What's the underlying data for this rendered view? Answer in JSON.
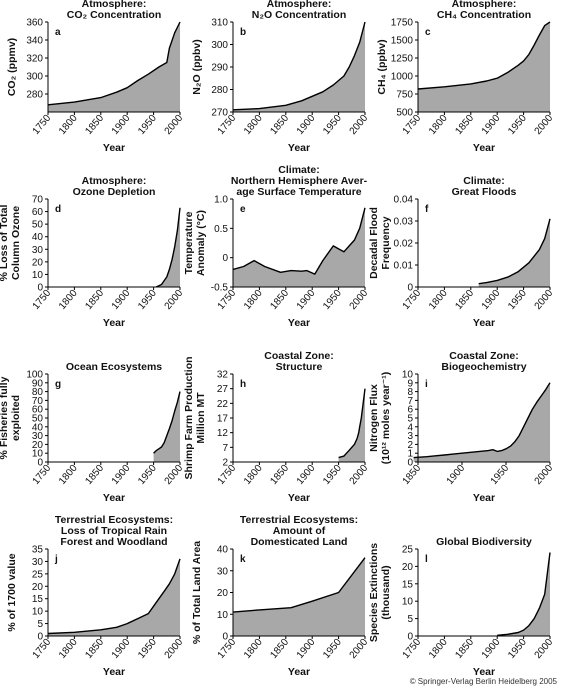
{
  "copyright": "© Springer-Verlag Berlin Heidelberg 2005",
  "colors": {
    "fill": "#a8a8a8",
    "line": "#000000",
    "axis": "#000000"
  },
  "chart_data": [
    {
      "letter": "a",
      "type": "area",
      "title_lines": [
        "Atmosphere:",
        "CO₂ Concentration"
      ],
      "ylabel_lines": [
        "CO₂ (ppmv)"
      ],
      "xlabel": "Year",
      "xlim": [
        1750,
        2000
      ],
      "ylim": [
        260,
        360
      ],
      "xticks": [
        "1750",
        "1800",
        "1850",
        "1900",
        "1950",
        "2000"
      ],
      "yticks": [
        "280",
        "300",
        "320",
        "340",
        "360"
      ],
      "x": [
        1750,
        1800,
        1850,
        1880,
        1900,
        1920,
        1940,
        1960,
        1975,
        1980,
        1990,
        2000
      ],
      "y": [
        268,
        271,
        276,
        282,
        287,
        295,
        302,
        310,
        315,
        331,
        348,
        360
      ]
    },
    {
      "letter": "b",
      "type": "area",
      "title_lines": [
        "Atmosphere:",
        "N₂O Concentration"
      ],
      "ylabel_lines": [
        "N₂O (ppbv)"
      ],
      "xlabel": "Year",
      "xlim": [
        1750,
        2000
      ],
      "ylim": [
        270,
        310
      ],
      "xticks": [
        "1750",
        "1800",
        "1850",
        "1900",
        "1950",
        "2000"
      ],
      "yticks": [
        "270",
        "280",
        "290",
        "300",
        "310"
      ],
      "x": [
        1750,
        1800,
        1850,
        1880,
        1900,
        1920,
        1940,
        1960,
        1970,
        1980,
        1990,
        2000
      ],
      "y": [
        271,
        271.5,
        273,
        275,
        277,
        279,
        282,
        286,
        290,
        295,
        301,
        310
      ]
    },
    {
      "letter": "c",
      "type": "area",
      "title_lines": [
        "Atmosphere:",
        "CH₄ Concentration"
      ],
      "ylabel_lines": [
        "CH₄ (ppbv)"
      ],
      "xlabel": "Year",
      "xlim": [
        1750,
        2000
      ],
      "ylim": [
        500,
        1750
      ],
      "xticks": [
        "1750",
        "1800",
        "1850",
        "1900",
        "1950",
        "2000"
      ],
      "yticks": [
        "500",
        "750",
        "1000",
        "1250",
        "1500",
        "1750"
      ],
      "x": [
        1750,
        1800,
        1850,
        1880,
        1900,
        1920,
        1940,
        1950,
        1960,
        1970,
        1980,
        1990,
        2000
      ],
      "y": [
        820,
        850,
        890,
        930,
        970,
        1050,
        1150,
        1210,
        1300,
        1430,
        1570,
        1700,
        1750
      ]
    },
    {
      "letter": "d",
      "type": "area",
      "title_lines": [
        "Atmosphere:",
        "Ozone Depletion"
      ],
      "ylabel_lines": [
        "% Loss of Total",
        "Column Ozone"
      ],
      "xlabel": "Year",
      "xlim": [
        1750,
        2000
      ],
      "ylim": [
        0,
        70
      ],
      "xticks": [
        "1750",
        "1800",
        "1850",
        "1900",
        "1950",
        "2000"
      ],
      "yticks": [
        "0",
        "10",
        "20",
        "30",
        "40",
        "50",
        "60",
        "70"
      ],
      "x": [
        1955,
        1965,
        1975,
        1980,
        1985,
        1990,
        1995,
        2000
      ],
      "y": [
        0,
        2,
        8,
        14,
        22,
        32,
        45,
        63
      ]
    },
    {
      "letter": "e",
      "type": "area",
      "title_lines": [
        "Climate:",
        "Northern Hemisphere Aver-",
        "age Surface Temperature"
      ],
      "ylabel_lines": [
        "Temperature",
        "Anomaly (°C)"
      ],
      "xlabel": "Year",
      "xlim": [
        1750,
        2000
      ],
      "ylim": [
        -0.5,
        1.0
      ],
      "xticks": [
        "1750",
        "1800",
        "1850",
        "1900",
        "1950",
        "2000"
      ],
      "yticks": [
        "-0.5",
        "0",
        "0.5",
        "1.0"
      ],
      "baseline": -0.5,
      "x": [
        1750,
        1770,
        1790,
        1810,
        1840,
        1860,
        1880,
        1890,
        1905,
        1920,
        1940,
        1950,
        1960,
        1970,
        1980,
        1990,
        2000
      ],
      "y": [
        -0.2,
        -0.15,
        -0.05,
        -0.15,
        -0.25,
        -0.22,
        -0.23,
        -0.22,
        -0.28,
        -0.05,
        0.2,
        0.15,
        0.1,
        0.2,
        0.3,
        0.5,
        0.85
      ]
    },
    {
      "letter": "f",
      "type": "area",
      "title_lines": [
        "Climate:",
        "Great Floods"
      ],
      "ylabel_lines": [
        "Decadal Flood",
        "Frequency"
      ],
      "xlabel": "Year",
      "xlim": [
        1750,
        2000
      ],
      "ylim": [
        0,
        0.04
      ],
      "xticks": [
        "1750",
        "1800",
        "1850",
        "1900",
        "1950",
        "2000"
      ],
      "yticks": [
        "0",
        "0.01",
        "0.02",
        "0.03",
        "0.04"
      ],
      "x": [
        1865,
        1880,
        1900,
        1920,
        1940,
        1960,
        1980,
        1990,
        2000
      ],
      "y": [
        0.0015,
        0.002,
        0.003,
        0.0045,
        0.007,
        0.011,
        0.017,
        0.022,
        0.031
      ]
    },
    {
      "letter": "g",
      "type": "area",
      "title_lines": [
        "Ocean Ecosystems"
      ],
      "ylabel_lines": [
        "% Fisheries fully",
        "exploited"
      ],
      "xlabel": "Year",
      "xlim": [
        1750,
        2000
      ],
      "ylim": [
        0,
        100
      ],
      "xticks": [
        "1750",
        "1800",
        "1850",
        "1900",
        "1950",
        "2000"
      ],
      "yticks": [
        "0",
        "10",
        "20",
        "30",
        "40",
        "50",
        "60",
        "70",
        "80",
        "90",
        "100"
      ],
      "x": [
        1950,
        1955,
        1960,
        1965,
        1970,
        1975,
        1980,
        1985,
        1990,
        1995,
        2000
      ],
      "y": [
        10,
        13,
        15,
        17,
        22,
        30,
        38,
        47,
        58,
        68,
        80
      ]
    },
    {
      "letter": "h",
      "type": "area",
      "title_lines": [
        "Coastal Zone:",
        "Structure"
      ],
      "ylabel_lines": [
        "Shrimp Farm Production",
        "Million MT"
      ],
      "xlabel": "Year",
      "xlim": [
        1750,
        2000
      ],
      "ylim": [
        2,
        32
      ],
      "xticks": [
        "1750",
        "1800",
        "1850",
        "1900",
        "1950",
        "2000"
      ],
      "yticks": [
        "2",
        "7",
        "12",
        "17",
        "22",
        "27",
        "32"
      ],
      "x": [
        1950,
        1960,
        1965,
        1970,
        1975,
        1980,
        1985,
        1988,
        1990,
        1993,
        1995,
        1998,
        2000
      ],
      "y": [
        3.5,
        4,
        5,
        6,
        7,
        8,
        10,
        12,
        14,
        17,
        20,
        24,
        27
      ]
    },
    {
      "letter": "i",
      "type": "area",
      "title_lines": [
        "Coastal Zone:",
        "Biogeochemistry"
      ],
      "ylabel_lines": [
        "Nitrogen Flux",
        "(10¹² moles year⁻¹)"
      ],
      "xlabel": "Year",
      "xlim": [
        1850,
        2000
      ],
      "ylim": [
        0,
        10
      ],
      "xticks": [
        "1850",
        "1900",
        "1950",
        "2000"
      ],
      "yticks": [
        "0",
        "1",
        "2",
        "3",
        "4",
        "5",
        "6",
        "7",
        "8",
        "9",
        "10"
      ],
      "x": [
        1845,
        1860,
        1870,
        1880,
        1890,
        1900,
        1910,
        1920,
        1930,
        1935,
        1940,
        1945,
        1950,
        1955,
        1960,
        1965,
        1970,
        1975,
        1980,
        1985,
        1990,
        1995,
        2000
      ],
      "y": [
        0.5,
        0.6,
        0.7,
        0.8,
        0.9,
        1.0,
        1.1,
        1.2,
        1.3,
        1.4,
        1.2,
        1.3,
        1.5,
        1.8,
        2.3,
        3.0,
        4.0,
        5.0,
        6.0,
        6.8,
        7.5,
        8.2,
        9.0
      ]
    },
    {
      "letter": "j",
      "type": "area",
      "title_lines": [
        "Terrestrial Ecosystems:",
        "Loss of Tropical Rain",
        "Forest and Woodland"
      ],
      "ylabel_lines": [
        "% of 1700 value"
      ],
      "xlabel": "Year",
      "xlim": [
        1750,
        2000
      ],
      "ylim": [
        0,
        35
      ],
      "xticks": [
        "1750",
        "1800",
        "1850",
        "1900",
        "1950",
        "2000"
      ],
      "yticks": [
        "0",
        "5",
        "10",
        "15",
        "20",
        "25",
        "30",
        "35"
      ],
      "x": [
        1750,
        1800,
        1850,
        1880,
        1900,
        1920,
        1940,
        1950,
        1960,
        1970,
        1980,
        1990,
        2000
      ],
      "y": [
        1,
        1.5,
        2.5,
        3.5,
        5,
        7,
        9,
        12,
        15,
        18,
        21,
        25,
        31
      ]
    },
    {
      "letter": "k",
      "type": "area",
      "title_lines": [
        "Terrestrial Ecosystems:",
        "Amount of",
        "Domesticated Land"
      ],
      "ylabel_lines": [
        "% of Total Land Area"
      ],
      "xlabel": "Year",
      "xlim": [
        1750,
        2000
      ],
      "ylim": [
        0,
        40
      ],
      "xticks": [
        "1750",
        "1800",
        "1850",
        "1900",
        "1950",
        "2000"
      ],
      "yticks": [
        "0",
        "10",
        "20",
        "30",
        "40"
      ],
      "x": [
        1750,
        1800,
        1860,
        1900,
        1950,
        2000
      ],
      "y": [
        11,
        12,
        13,
        16,
        20,
        36
      ]
    },
    {
      "letter": "l",
      "type": "area",
      "title_lines": [
        "Global Biodiversity"
      ],
      "ylabel_lines": [
        "Species Extinctions",
        "(thousand)"
      ],
      "xlabel": "Year",
      "xlim": [
        1750,
        2000
      ],
      "ylim": [
        0,
        25
      ],
      "xticks": [
        "1750",
        "1800",
        "1850",
        "1900",
        "1950",
        "2000"
      ],
      "yticks": [
        "0",
        "5",
        "10",
        "15",
        "20",
        "25"
      ],
      "x": [
        1900,
        1920,
        1940,
        1950,
        1960,
        1970,
        1980,
        1990,
        2000
      ],
      "y": [
        0.2,
        0.5,
        1,
        1.7,
        3,
        5,
        8,
        12,
        24
      ]
    }
  ]
}
